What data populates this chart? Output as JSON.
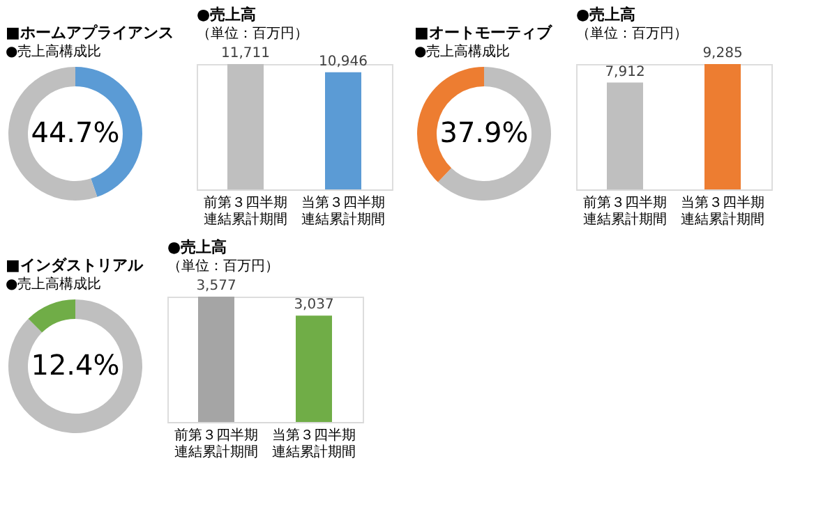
{
  "chart_data": [
    {
      "type": "donut",
      "title": "■ホームアプライアンス",
      "subtitle": "●売上高構成比",
      "categories": [
        null,
        null
      ],
      "values": [
        44.7,
        55.3
      ],
      "colors": [
        "#5b9bd5",
        "#bfbfbf"
      ],
      "annotations": [
        "44.7%"
      ],
      "legend": false
    },
    {
      "type": "bar",
      "title": "●売上高",
      "subtitle": "（単位：百万円）",
      "categories": [
        "前第３四半期連結累計期間",
        "当第３四半期連結累計期間"
      ],
      "values": [
        11711,
        10946
      ],
      "colors": [
        "#bfbfbf",
        "#5b9bd5"
      ],
      "value_labels": [
        "11,711",
        "10,946"
      ],
      "legend": false
    },
    {
      "type": "donut",
      "title": "■オートモーティブ",
      "subtitle": "●売上高構成比",
      "categories": [
        null,
        null
      ],
      "values": [
        62.1,
        37.9
      ],
      "colors": [
        "#bfbfbf",
        "#ed7d31"
      ],
      "annotations": [
        "37.9%"
      ],
      "legend": false
    },
    {
      "type": "bar",
      "title": "●売上高",
      "subtitle": "（単位：百万円）",
      "categories": [
        "前第３四半期連結累計期間",
        "当第３四半期連結累計期間"
      ],
      "values": [
        7912,
        9285
      ],
      "colors": [
        "#bfbfbf",
        "#ed7d31"
      ],
      "value_labels": [
        "7,912",
        "9,285"
      ],
      "legend": false
    },
    {
      "type": "donut",
      "title": "■インダストリアル",
      "subtitle": "●売上高構成比",
      "categories": [
        null,
        null
      ],
      "values": [
        87.6,
        12.4
      ],
      "colors": [
        "#bfbfbf",
        "#70ad47"
      ],
      "annotations": [
        "12.4%"
      ],
      "legend": false
    },
    {
      "type": "bar",
      "title": "●売上高",
      "subtitle": "（単位：百万円）",
      "categories": [
        "前第３四半期連結累計期間",
        "当第３四半期連結累計期間"
      ],
      "values": [
        3577,
        3037
      ],
      "colors": [
        "#a5a5a5",
        "#70ad47"
      ],
      "value_labels": [
        "3,577",
        "3,037"
      ],
      "legend": false
    }
  ]
}
